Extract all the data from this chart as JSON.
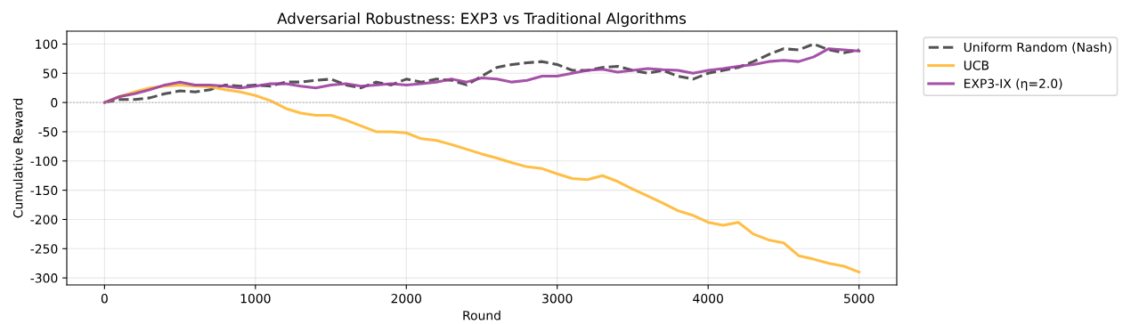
{
  "chart_data": {
    "type": "line",
    "title": "Adversarial Robustness: EXP3 vs Traditional Algorithms",
    "xlabel": "Round",
    "ylabel": "Cumulative Reward",
    "x": [
      0,
      100,
      200,
      300,
      400,
      500,
      600,
      700,
      800,
      900,
      1000,
      1100,
      1200,
      1300,
      1400,
      1500,
      1600,
      1700,
      1800,
      1900,
      2000,
      2100,
      2200,
      2300,
      2400,
      2500,
      2600,
      2700,
      2800,
      2900,
      3000,
      3100,
      3200,
      3300,
      3400,
      3500,
      3600,
      3700,
      3800,
      3900,
      4000,
      4100,
      4200,
      4300,
      4400,
      4500,
      4600,
      4700,
      4800,
      4900,
      5000
    ],
    "series": [
      {
        "name": "Uniform Random (Nash)",
        "color": "#404040",
        "line_style": "dashed",
        "values": [
          0,
          5,
          5,
          8,
          15,
          20,
          18,
          22,
          30,
          28,
          30,
          28,
          35,
          35,
          38,
          40,
          30,
          25,
          35,
          30,
          40,
          35,
          40,
          38,
          30,
          45,
          60,
          65,
          68,
          70,
          65,
          55,
          55,
          60,
          62,
          55,
          50,
          55,
          45,
          40,
          50,
          55,
          60,
          70,
          82,
          92,
          90,
          100,
          90,
          85,
          90
        ]
      },
      {
        "name": "UCB",
        "color": "#ffb732",
        "line_style": "solid",
        "values": [
          0,
          10,
          18,
          25,
          28,
          30,
          28,
          27,
          22,
          18,
          12,
          3,
          -10,
          -18,
          -22,
          -22,
          -30,
          -40,
          -50,
          -50,
          -52,
          -62,
          -65,
          -72,
          -80,
          -88,
          -95,
          -103,
          -110,
          -113,
          -122,
          -130,
          -132,
          -125,
          -135,
          -148,
          -160,
          -172,
          -185,
          -193,
          -205,
          -210,
          -205,
          -225,
          -235,
          -240,
          -262,
          -268,
          -275,
          -280,
          -290
        ]
      },
      {
        "name": "EXP3-IX (η=2.0)",
        "color": "#9b3f9f",
        "line_style": "solid",
        "values": [
          0,
          10,
          15,
          22,
          30,
          35,
          30,
          30,
          28,
          25,
          28,
          32,
          32,
          28,
          25,
          30,
          32,
          28,
          30,
          32,
          30,
          32,
          35,
          40,
          35,
          42,
          40,
          35,
          38,
          45,
          45,
          50,
          55,
          57,
          52,
          55,
          58,
          56,
          55,
          50,
          55,
          58,
          62,
          65,
          70,
          72,
          70,
          78,
          92,
          90,
          88
        ]
      }
    ],
    "xlim": [
      -250,
      5250
    ],
    "xticks": [
      0,
      1000,
      2000,
      3000,
      4000,
      5000
    ],
    "ylim": [
      -312,
      122
    ],
    "yticks": [
      -300,
      -250,
      -200,
      -150,
      -100,
      -50,
      0,
      50,
      100
    ],
    "ref_lines": [
      {
        "axis": "y",
        "value": 0,
        "color": "#b0b0b0",
        "line_style": "dotted"
      }
    ],
    "grid": true,
    "legend": "top right",
    "marker": "none"
  }
}
